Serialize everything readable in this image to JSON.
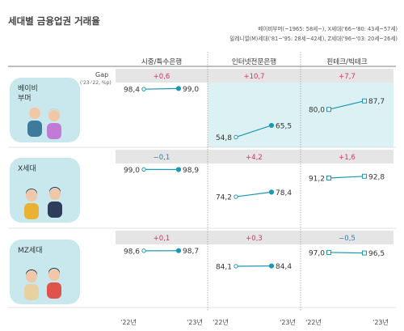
{
  "title": "세대별 금융업권 거래율",
  "legend": {
    "line1": "베이비부머(~1965: 58세~), X세대('66~'80: 43세~57세)",
    "line2": "밀레니얼(M)세대('81~'95: 28세~42세), Z세대('96~'03: 20세~26세)"
  },
  "gap_label": "Gap",
  "gap_sub": "('23-'22, %p)",
  "colors": {
    "positive_gap": "#d6335e",
    "negative_gap": "#2f7db2",
    "line": "#1d98b4",
    "gap_band": "#e5e5e5",
    "highlight": "#dcf1f3",
    "card": "#c8e8ee"
  },
  "chart_data": {
    "type": "line",
    "columns": [
      "시중/특수은행",
      "인터넷전문은행",
      "핀테크/빅테크"
    ],
    "x": [
      "'22년",
      "'23년"
    ],
    "ylim": [
      50,
      100
    ],
    "highlight": "베이비부머: 인터넷전문은행, 핀테크/빅테크",
    "rows": [
      {
        "label": "베이비\n부머",
        "cells": [
          {
            "values": [
              98.4,
              99.0
            ],
            "labels": [
              "98,4",
              "99,0"
            ],
            "gap": "+0,6"
          },
          {
            "values": [
              54.8,
              65.5
            ],
            "labels": [
              "54,8",
              "65,5"
            ],
            "gap": "+10,7"
          },
          {
            "values": [
              80.0,
              87.7
            ],
            "labels": [
              "80,0",
              "87,7"
            ],
            "gap": "+7,7"
          }
        ]
      },
      {
        "label": "X세대",
        "cells": [
          {
            "values": [
              99.0,
              98.9
            ],
            "labels": [
              "99,0",
              "98,9"
            ],
            "gap": "−0,1"
          },
          {
            "values": [
              74.2,
              78.4
            ],
            "labels": [
              "74,2",
              "78,4"
            ],
            "gap": "+4,2"
          },
          {
            "values": [
              91.2,
              92.8
            ],
            "labels": [
              "91,2",
              "92,8"
            ],
            "gap": "+1,6"
          }
        ]
      },
      {
        "label": "MZ세대",
        "cells": [
          {
            "values": [
              98.6,
              98.7
            ],
            "labels": [
              "98,6",
              "98,7"
            ],
            "gap": "+0,1"
          },
          {
            "values": [
              84.1,
              84.4
            ],
            "labels": [
              "84,1",
              "84,4"
            ],
            "gap": "+0,3"
          },
          {
            "values": [
              97.0,
              96.5
            ],
            "labels": [
              "97,0",
              "96,5"
            ],
            "gap": "−0,5"
          }
        ]
      }
    ]
  }
}
